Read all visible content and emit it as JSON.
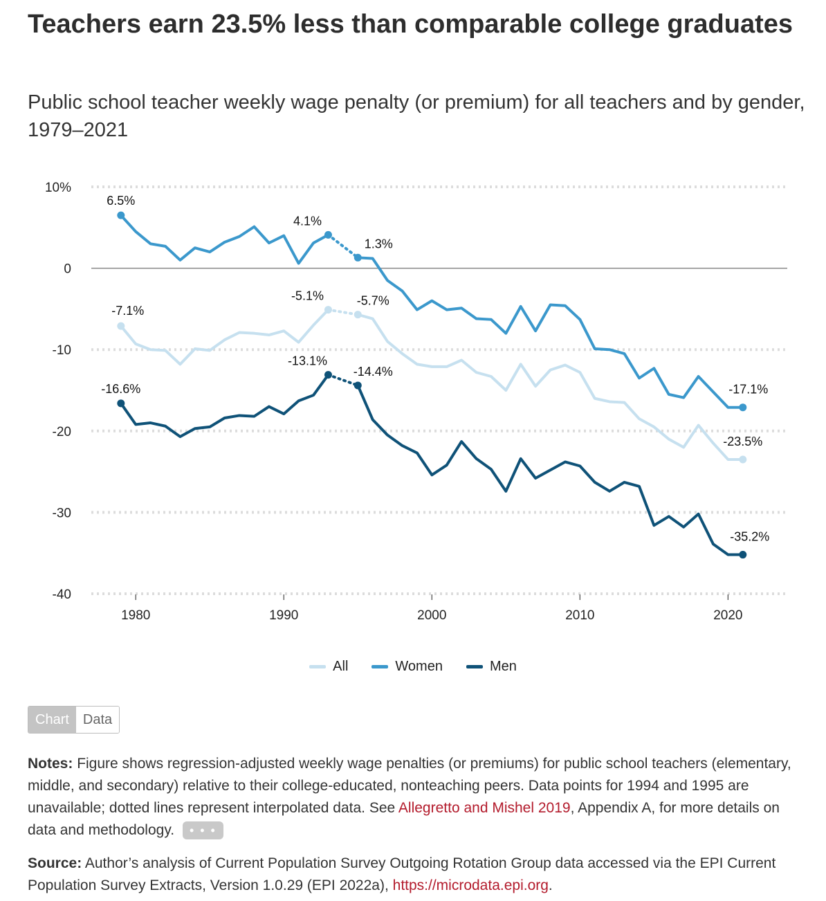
{
  "title": "Teachers earn 23.5% less than comparable college graduates",
  "subtitle": "Public school teacher weekly wage penalty (or premium) for all teachers and by gender, 1979–2021",
  "legend": {
    "all": "All",
    "women": "Women",
    "men": "Men"
  },
  "toggle": {
    "chart": "Chart",
    "data": "Data"
  },
  "notes": {
    "label": "Notes:",
    "text": "Figure shows regression-adjusted weekly wage penalties (or premiums) for public school teachers (elementary, middle, and secondary) relative to their college-educated, nonteaching peers. Data points for 1994 and 1995 are unavailable; dotted lines represent interpolated data. See",
    "link": "Allegretto and Mishel 2019",
    "tail": ", Appendix A, for more details on data and methodology.",
    "more": "• • •"
  },
  "source": {
    "label": "Source:",
    "text": "Author’s analysis of Current Population Survey Outgoing Rotation Group data accessed via the EPI Current Population Survey Extracts, Version 1.0.29 (EPI 2022a),",
    "link": "https://microdata.epi.org",
    "tail": "."
  },
  "chart_data": {
    "type": "line",
    "xlim": [
      1977,
      2024
    ],
    "ylim": [
      -40,
      10
    ],
    "x_ticks": [
      1980,
      1990,
      2000,
      2010,
      2020
    ],
    "y_ticks": [
      {
        "value": 10,
        "label": "10%"
      },
      {
        "value": 0,
        "label": "0"
      },
      {
        "value": -10,
        "label": "-10"
      },
      {
        "value": -20,
        "label": "-20"
      },
      {
        "value": -30,
        "label": "-30"
      },
      {
        "value": -40,
        "label": "-40"
      }
    ],
    "colors": {
      "All": "#c6e0ef",
      "Women": "#3b98cc",
      "Men": "#0f5278"
    },
    "gap_years": [
      1994
    ],
    "series": [
      {
        "name": "All",
        "x": [
          1979,
          1980,
          1981,
          1982,
          1983,
          1984,
          1985,
          1986,
          1987,
          1988,
          1989,
          1990,
          1991,
          1992,
          1993,
          1995,
          1996,
          1997,
          1998,
          1999,
          2000,
          2001,
          2002,
          2003,
          2004,
          2005,
          2006,
          2007,
          2008,
          2009,
          2010,
          2011,
          2012,
          2013,
          2014,
          2015,
          2016,
          2017,
          2018,
          2019,
          2020,
          2021
        ],
        "y": [
          -7.1,
          -9.3,
          -10.0,
          -10.1,
          -11.8,
          -9.9,
          -10.1,
          -8.8,
          -7.9,
          -8.0,
          -8.2,
          -7.7,
          -9.1,
          -7.0,
          -5.1,
          -5.7,
          -6.2,
          -9.0,
          -10.5,
          -11.8,
          -12.1,
          -12.1,
          -11.3,
          -12.8,
          -13.3,
          -15.0,
          -11.8,
          -14.5,
          -12.5,
          -11.9,
          -12.8,
          -16.0,
          -16.4,
          -16.5,
          -18.5,
          -19.5,
          -21.0,
          -22.0,
          -19.3,
          -21.5,
          -23.5,
          -23.5
        ],
        "labels": [
          {
            "year": 1979,
            "text": "-7.1%"
          },
          {
            "year": 1993,
            "text": "-5.1%"
          },
          {
            "year": 1995,
            "text": "-5.7%"
          },
          {
            "year": 2021,
            "text": "-23.5%"
          }
        ]
      },
      {
        "name": "Women",
        "x": [
          1979,
          1980,
          1981,
          1982,
          1983,
          1984,
          1985,
          1986,
          1987,
          1988,
          1989,
          1990,
          1991,
          1992,
          1993,
          1995,
          1996,
          1997,
          1998,
          1999,
          2000,
          2001,
          2002,
          2003,
          2004,
          2005,
          2006,
          2007,
          2008,
          2009,
          2010,
          2011,
          2012,
          2013,
          2014,
          2015,
          2016,
          2017,
          2018,
          2019,
          2020,
          2021
        ],
        "y": [
          6.5,
          4.5,
          3.0,
          2.7,
          1.0,
          2.5,
          2.0,
          3.2,
          3.9,
          5.1,
          3.1,
          4.0,
          0.6,
          3.1,
          4.1,
          1.3,
          1.2,
          -1.5,
          -2.8,
          -5.1,
          -4.0,
          -5.1,
          -4.9,
          -6.2,
          -6.3,
          -8.0,
          -4.7,
          -7.7,
          -4.5,
          -4.6,
          -6.3,
          -9.9,
          -10.0,
          -10.5,
          -13.5,
          -12.3,
          -15.5,
          -15.9,
          -13.3,
          -15.2,
          -17.1,
          -17.1
        ],
        "labels": [
          {
            "year": 1979,
            "text": "6.5%"
          },
          {
            "year": 1993,
            "text": "4.1%"
          },
          {
            "year": 1995,
            "text": "1.3%"
          },
          {
            "year": 2021,
            "text": "-17.1%"
          }
        ]
      },
      {
        "name": "Men",
        "x": [
          1979,
          1980,
          1981,
          1982,
          1983,
          1984,
          1985,
          1986,
          1987,
          1988,
          1989,
          1990,
          1991,
          1992,
          1993,
          1995,
          1996,
          1997,
          1998,
          1999,
          2000,
          2001,
          2002,
          2003,
          2004,
          2005,
          2006,
          2007,
          2008,
          2009,
          2010,
          2011,
          2012,
          2013,
          2014,
          2015,
          2016,
          2017,
          2018,
          2019,
          2020,
          2021
        ],
        "y": [
          -16.6,
          -19.2,
          -19.0,
          -19.4,
          -20.7,
          -19.7,
          -19.5,
          -18.4,
          -18.1,
          -18.2,
          -17.0,
          -17.9,
          -16.3,
          -15.6,
          -13.1,
          -14.4,
          -18.6,
          -20.5,
          -21.8,
          -22.7,
          -25.4,
          -24.2,
          -21.3,
          -23.4,
          -24.7,
          -27.4,
          -23.4,
          -25.8,
          -24.8,
          -23.8,
          -24.3,
          -26.3,
          -27.4,
          -26.3,
          -26.8,
          -31.6,
          -30.5,
          -31.8,
          -30.2,
          -33.9,
          -35.2,
          -35.2
        ],
        "labels": [
          {
            "year": 1979,
            "text": "-16.6%"
          },
          {
            "year": 1993,
            "text": "-13.1%"
          },
          {
            "year": 1995,
            "text": "-14.4%"
          },
          {
            "year": 2021,
            "text": "-35.2%"
          }
        ]
      }
    ]
  }
}
